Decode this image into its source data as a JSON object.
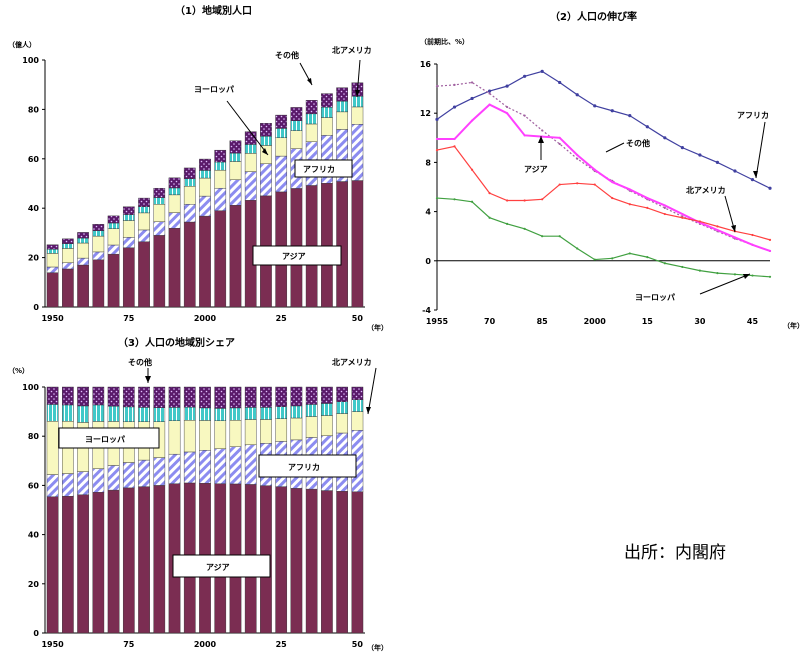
{
  "source": "出所：内閣府",
  "colors": {
    "asia": "#7b2d52",
    "africa": "#9b9be8",
    "europe": "#f8f8c0",
    "north_america": "#40c0c0",
    "others": "#5a1a6a",
    "line_africa": "#4040a0",
    "line_others": "#a060a0",
    "line_asia": "#ff40ff",
    "line_north_america": "#ff4040",
    "line_europe": "#40a040"
  },
  "chart_data": [
    {
      "id": "c1",
      "type": "bar",
      "stacked": true,
      "title": "（1）地域別人口",
      "unit_label": "（億人）",
      "x_unit": "（年）",
      "ylim": [
        0,
        100
      ],
      "yticks": [
        "0",
        "20",
        "40",
        "60",
        "80",
        "100"
      ],
      "tick_labels": [
        {
          "index": 0,
          "text": "1950"
        },
        {
          "index": 5,
          "text": "75"
        },
        {
          "index": 10,
          "text": "2000"
        },
        {
          "index": 15,
          "text": "25"
        },
        {
          "index": 20,
          "text": "50"
        }
      ],
      "x": [
        1950,
        1955,
        1960,
        1965,
        1970,
        1975,
        1980,
        1985,
        1990,
        1995,
        2000,
        2005,
        2010,
        2015,
        2020,
        2025,
        2030,
        2035,
        2040,
        2045,
        2050
      ],
      "series": [
        {
          "key": "asia",
          "values": [
            13.9,
            15.4,
            17.0,
            19.1,
            21.4,
            24.0,
            26.4,
            29.0,
            31.9,
            34.4,
            36.8,
            39.0,
            41.2,
            43.2,
            45.0,
            46.6,
            48.0,
            49.2,
            50.1,
            50.8,
            51.2
          ]
        },
        {
          "key": "africa",
          "values": [
            2.3,
            2.5,
            2.8,
            3.2,
            3.7,
            4.2,
            4.8,
            5.5,
            6.3,
            7.2,
            8.1,
            9.1,
            10.3,
            11.6,
            13.0,
            14.5,
            16.1,
            17.7,
            19.4,
            21.1,
            22.8
          ]
        },
        {
          "key": "europe",
          "values": [
            5.5,
            5.8,
            6.1,
            6.4,
            6.6,
            6.8,
            6.9,
            7.1,
            7.2,
            7.3,
            7.3,
            7.3,
            7.4,
            7.4,
            7.4,
            7.4,
            7.3,
            7.2,
            7.2,
            7.1,
            7.0
          ]
        },
        {
          "key": "north_america",
          "values": [
            1.7,
            1.9,
            2.0,
            2.2,
            2.3,
            2.4,
            2.5,
            2.7,
            2.8,
            3.0,
            3.1,
            3.3,
            3.4,
            3.6,
            3.7,
            3.8,
            4.0,
            4.1,
            4.2,
            4.3,
            4.3
          ]
        },
        {
          "key": "others",
          "values": [
            1.8,
            2.0,
            2.3,
            2.6,
            2.9,
            3.2,
            3.5,
            3.8,
            4.1,
            4.4,
            4.6,
            4.8,
            5.0,
            5.2,
            5.3,
            5.4,
            5.4,
            5.5,
            5.5,
            5.5,
            5.5
          ]
        }
      ],
      "labels": {
        "asia": "アジア",
        "africa": "アフリカ",
        "europe": "ヨーロッパ",
        "north_america": "北アメリカ",
        "others": "その他"
      }
    },
    {
      "id": "c2",
      "type": "line",
      "title": "（2）人口の伸び率",
      "unit_label": "（前期比、%）",
      "x_unit": "（年）",
      "ylim": [
        -4,
        16
      ],
      "yticks": [
        "-4",
        "0",
        "4",
        "8",
        "12",
        "16"
      ],
      "tick_labels": [
        {
          "index": 0,
          "text": "1955"
        },
        {
          "index": 3,
          "text": "70"
        },
        {
          "index": 6,
          "text": "85"
        },
        {
          "index": 9,
          "text": "2000"
        },
        {
          "index": 12,
          "text": "15"
        },
        {
          "index": 15,
          "text": "30"
        },
        {
          "index": 18,
          "text": "45"
        }
      ],
      "x": [
        1955,
        1960,
        1965,
        1970,
        1975,
        1980,
        1985,
        1990,
        1995,
        2000,
        2005,
        2010,
        2015,
        2020,
        2025,
        2030,
        2035,
        2040,
        2045,
        2050
      ],
      "series": [
        {
          "key": "line_africa",
          "values": [
            11.5,
            12.5,
            13.2,
            13.8,
            14.2,
            15.0,
            15.4,
            14.5,
            13.5,
            12.6,
            12.2,
            11.8,
            10.9,
            10.0,
            9.2,
            8.6,
            8.0,
            7.3,
            6.6,
            5.9
          ]
        },
        {
          "key": "line_others",
          "values": [
            14.2,
            14.3,
            14.5,
            13.6,
            12.5,
            11.8,
            10.6,
            9.5,
            8.3,
            7.3,
            6.5,
            5.7,
            5.0,
            4.3,
            3.6,
            3.0,
            2.4,
            1.8,
            1.3,
            0.8
          ]
        },
        {
          "key": "line_asia",
          "values": [
            9.9,
            9.9,
            11.4,
            12.7,
            12.0,
            10.2,
            10.1,
            10.0,
            8.6,
            7.4,
            6.4,
            5.8,
            5.1,
            4.5,
            3.8,
            3.1,
            2.5,
            1.9,
            1.3,
            0.8
          ]
        },
        {
          "key": "line_north_america",
          "values": [
            9.0,
            9.3,
            7.4,
            5.5,
            4.9,
            4.9,
            5.0,
            6.2,
            6.3,
            6.2,
            5.1,
            4.6,
            4.3,
            3.8,
            3.5,
            3.2,
            2.8,
            2.4,
            2.1,
            1.7
          ]
        },
        {
          "key": "line_europe",
          "values": [
            5.1,
            5.0,
            4.8,
            3.5,
            3.0,
            2.6,
            2.0,
            2.0,
            1.0,
            0.1,
            0.2,
            0.6,
            0.3,
            -0.2,
            -0.5,
            -0.8,
            -1.0,
            -1.1,
            -1.2,
            -1.3
          ]
        }
      ],
      "labels": {
        "line_africa": "アフリカ",
        "line_others": "その他",
        "line_asia": "アジア",
        "line_north_america": "北アメリカ",
        "line_europe": "ヨーロッパ"
      }
    },
    {
      "id": "c3",
      "type": "bar",
      "stacked": true,
      "title": "（3）人口の地域別シェア",
      "unit_label": "（%）",
      "x_unit": "（年）",
      "ylim": [
        0,
        100
      ],
      "yticks": [
        "0",
        "20",
        "40",
        "60",
        "80",
        "100"
      ],
      "tick_labels": [
        {
          "index": 0,
          "text": "1950"
        },
        {
          "index": 5,
          "text": "75"
        },
        {
          "index": 10,
          "text": "2000"
        },
        {
          "index": 15,
          "text": "25"
        },
        {
          "index": 20,
          "text": "50"
        }
      ],
      "x": [
        1950,
        1955,
        1960,
        1965,
        1970,
        1975,
        1980,
        1985,
        1990,
        1995,
        2000,
        2005,
        2010,
        2015,
        2020,
        2025,
        2030,
        2035,
        2040,
        2045,
        2050
      ],
      "series": [
        {
          "key": "asia",
          "values": [
            55.4,
            55.6,
            56.2,
            57.2,
            58.1,
            59.0,
            59.5,
            60.0,
            60.7,
            61.0,
            60.9,
            60.7,
            60.6,
            60.4,
            59.9,
            59.5,
            58.8,
            58.5,
            57.9,
            57.6,
            57.4
          ]
        },
        {
          "key": "africa",
          "values": [
            9.0,
            9.2,
            9.4,
            9.6,
            10.0,
            10.3,
            10.8,
            11.3,
            12.0,
            12.6,
            13.4,
            14.2,
            15.1,
            16.1,
            17.2,
            18.4,
            19.7,
            21.0,
            22.3,
            23.7,
            25.0
          ]
        },
        {
          "key": "europe",
          "values": [
            21.7,
            21.3,
            20.0,
            19.2,
            17.9,
            16.6,
            15.6,
            14.6,
            13.6,
            12.9,
            12.1,
            11.4,
            10.8,
            10.3,
            9.7,
            9.2,
            8.9,
            8.5,
            8.2,
            7.9,
            7.6
          ]
        },
        {
          "key": "north_america",
          "values": [
            6.8,
            6.6,
            6.7,
            6.7,
            6.2,
            6.0,
            5.8,
            5.7,
            5.4,
            5.3,
            5.1,
            5.0,
            5.0,
            4.9,
            4.9,
            4.9,
            4.9,
            4.9,
            4.9,
            4.8,
            4.8
          ]
        },
        {
          "key": "others",
          "values": [
            7.1,
            7.3,
            7.7,
            7.3,
            7.8,
            8.1,
            8.3,
            8.4,
            8.3,
            8.2,
            8.5,
            8.7,
            8.5,
            8.3,
            8.3,
            8.0,
            7.7,
            7.1,
            6.7,
            6.0,
            5.2
          ]
        }
      ],
      "labels": {
        "asia": "アジア",
        "africa": "アフリカ",
        "europe": "ヨーロッパ",
        "north_america": "北アメリカ",
        "others": "その他"
      }
    }
  ]
}
